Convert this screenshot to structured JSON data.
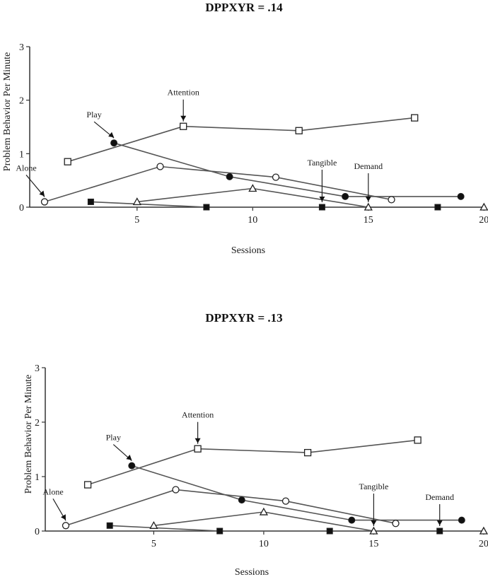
{
  "chart_data": [
    {
      "type": "line",
      "title": "DPPXYR = .14",
      "xlabel": "Sessions",
      "ylabel": "Problem Behavior Per Minute",
      "xlim": [
        0.5,
        20
      ],
      "ylim": [
        0,
        3
      ],
      "xticks": [
        5,
        10,
        15,
        20
      ],
      "yticks": [
        0,
        1,
        2,
        3
      ],
      "series": [
        {
          "name": "Alone",
          "marker": "circle-open",
          "x": [
            1,
            6,
            11,
            16
          ],
          "y": [
            0.1,
            0.76,
            0.56,
            0.14
          ]
        },
        {
          "name": "Attention",
          "marker": "square-open",
          "x": [
            2,
            7,
            12,
            17
          ],
          "y": [
            0.85,
            1.51,
            1.43,
            1.67
          ]
        },
        {
          "name": "Play",
          "marker": "circle-filled",
          "x": [
            4,
            9,
            14,
            19
          ],
          "y": [
            1.2,
            0.57,
            0.2,
            0.2
          ]
        },
        {
          "name": "Tangible",
          "marker": "square-filled",
          "x": [
            3,
            8,
            13,
            18
          ],
          "y": [
            0.1,
            0.0,
            0.0,
            0.0
          ]
        },
        {
          "name": "Demand",
          "marker": "triangle-open",
          "x": [
            5,
            10,
            15,
            20
          ],
          "y": [
            0.1,
            0.35,
            0.0,
            0.0
          ]
        }
      ],
      "annotations": [
        {
          "text": "Alone",
          "series": "Alone",
          "x": 1,
          "y": 0.1
        },
        {
          "text": "Play",
          "series": "Play",
          "x": 4,
          "y": 1.2
        },
        {
          "text": "Attention",
          "series": "Attention",
          "x": 7,
          "y": 1.51
        },
        {
          "text": "Tangible",
          "series": "Tangible",
          "x": 13,
          "y": 0.0
        },
        {
          "text": "Demand",
          "series": "Demand",
          "x": 15,
          "y": 0.0
        }
      ]
    },
    {
      "type": "line",
      "title": "DPPXYR = .13",
      "xlabel": "Sessions",
      "ylabel": "Problem Behavior Per Minute",
      "xlim": [
        0.5,
        20
      ],
      "ylim": [
        0,
        3
      ],
      "xticks": [
        5,
        10,
        15,
        20
      ],
      "yticks": [
        0,
        1,
        2,
        3
      ],
      "series": [
        {
          "name": "Alone",
          "marker": "circle-open",
          "x": [
            1,
            6,
            11,
            16
          ],
          "y": [
            0.1,
            0.76,
            0.55,
            0.14
          ]
        },
        {
          "name": "Attention",
          "marker": "square-open",
          "x": [
            2,
            7,
            12,
            17
          ],
          "y": [
            0.85,
            1.51,
            1.44,
            1.67
          ]
        },
        {
          "name": "Play",
          "marker": "circle-filled",
          "x": [
            4,
            9,
            14,
            19
          ],
          "y": [
            1.2,
            0.57,
            0.2,
            0.2
          ]
        },
        {
          "name": "Tangible",
          "marker": "square-filled",
          "x": [
            3,
            8,
            13,
            18
          ],
          "y": [
            0.1,
            0.0,
            0.0,
            0.0
          ]
        },
        {
          "name": "Demand",
          "marker": "triangle-open",
          "x": [
            5,
            10,
            15,
            20
          ],
          "y": [
            0.1,
            0.35,
            0.0,
            0.0
          ]
        }
      ],
      "annotations": [
        {
          "text": "Alone",
          "series": "Alone",
          "x": 1,
          "y": 0.1
        },
        {
          "text": "Play",
          "series": "Play",
          "x": 4,
          "y": 1.2
        },
        {
          "text": "Attention",
          "series": "Attention",
          "x": 7,
          "y": 1.51
        },
        {
          "text": "Tangible",
          "series": "Tangible",
          "x": 15,
          "y": 0.0
        },
        {
          "text": "Demand",
          "series": "Demand",
          "x": 18,
          "y": 0.0
        }
      ]
    }
  ],
  "colors": {
    "line": "#555555",
    "axis": "#333333",
    "marker_stroke": "#222222",
    "marker_fill_open": "#ffffff",
    "marker_fill_filled": "#111111"
  }
}
